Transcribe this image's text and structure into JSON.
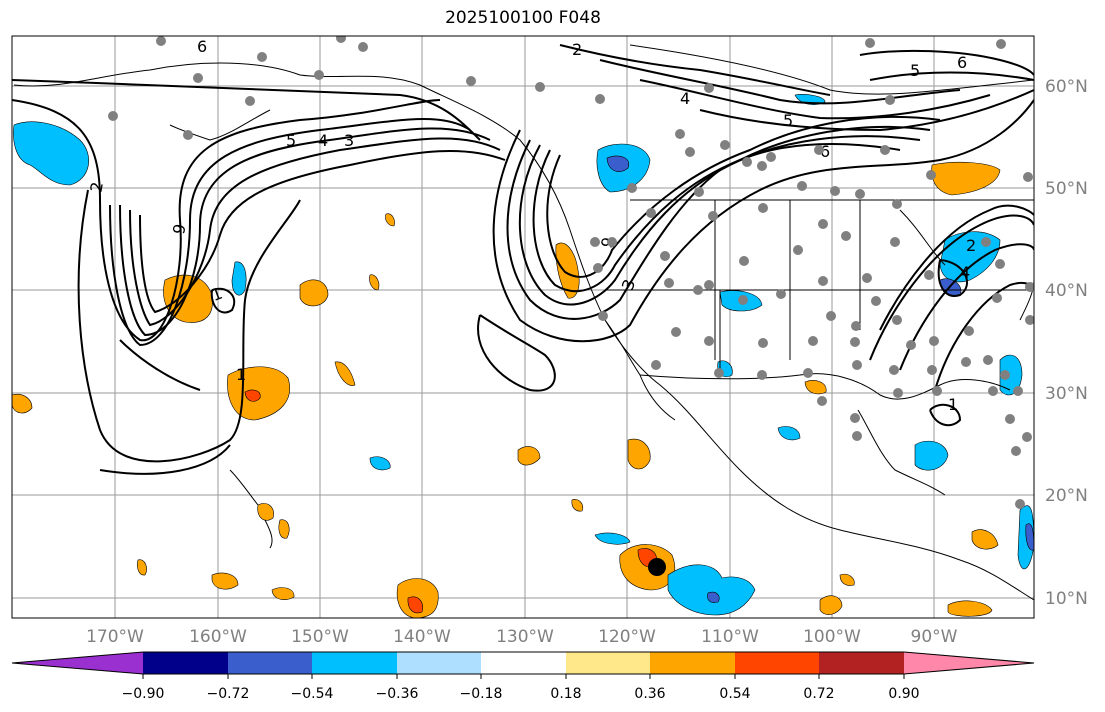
{
  "title": "2025100100 F048",
  "map": {
    "lon_labels": [
      "170°W",
      "160°W",
      "150°W",
      "140°W",
      "130°W",
      "120°W",
      "110°W",
      "100°W",
      "90°W"
    ],
    "lat_labels": [
      "60°N",
      "50°N",
      "40°N",
      "30°N",
      "20°N",
      "10°N"
    ],
    "contour_labels": [
      "6",
      "2",
      "9",
      "5",
      "4",
      "3",
      "1",
      "2",
      "4",
      "5",
      "6",
      "5",
      "6",
      "9",
      "3",
      "1",
      "2",
      "4",
      "1"
    ],
    "marker": "storm-center-dot"
  },
  "colorbar": {
    "ticks": [
      "−0.90",
      "−0.72",
      "−0.54",
      "−0.36",
      "−0.18",
      "0.18",
      "0.36",
      "0.54",
      "0.72",
      "0.90"
    ],
    "colors": [
      "#9b30d0",
      "#00008b",
      "#3a5fcd",
      "#00bfff",
      "#afdfff",
      "#ffffff",
      "#ffe88a",
      "#ffa500",
      "#ff4500",
      "#b22222",
      "#ff88aa"
    ]
  }
}
